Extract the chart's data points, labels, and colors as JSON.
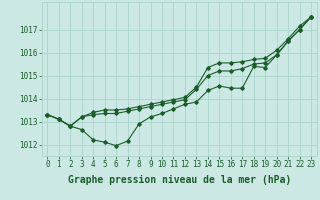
{
  "hours": [
    0,
    1,
    2,
    3,
    4,
    5,
    6,
    7,
    8,
    9,
    10,
    11,
    12,
    13,
    14,
    15,
    16,
    17,
    18,
    19,
    20,
    21,
    22,
    23
  ],
  "line_current": [
    1013.3,
    1013.1,
    1012.8,
    1012.65,
    1012.2,
    1012.1,
    1011.95,
    1012.15,
    1012.9,
    1013.2,
    1013.35,
    1013.55,
    1013.75,
    1013.85,
    1014.35,
    1014.55,
    1014.45,
    1014.45,
    1015.4,
    1015.35,
    1015.9,
    1016.5,
    1017.0,
    1017.55
  ],
  "line_top": [
    1013.3,
    1013.1,
    1012.8,
    1013.2,
    1013.4,
    1013.5,
    1013.5,
    1013.55,
    1013.65,
    1013.75,
    1013.85,
    1013.95,
    1014.05,
    1014.5,
    1015.35,
    1015.55,
    1015.55,
    1015.6,
    1015.7,
    1015.75,
    1016.1,
    1016.6,
    1017.15,
    1017.55
  ],
  "line_mid": [
    1013.3,
    1013.1,
    1012.8,
    1013.2,
    1013.3,
    1013.35,
    1013.35,
    1013.45,
    1013.55,
    1013.65,
    1013.75,
    1013.85,
    1013.95,
    1014.4,
    1015.0,
    1015.2,
    1015.2,
    1015.3,
    1015.5,
    1015.55,
    1015.9,
    1016.5,
    1017.0,
    1017.55
  ],
  "bg_color": "#cce8e4",
  "grid_color": "#aad4cc",
  "line_color": "#1a5c2a",
  "xlabel": "Graphe pression niveau de la mer (hPa)",
  "ylim_min": 1011.5,
  "ylim_max": 1018.2,
  "yticks": [
    1012,
    1013,
    1014,
    1015,
    1016,
    1017
  ],
  "marker": "D",
  "marker_size": 1.8,
  "line_width": 0.8,
  "xlabel_fontsize": 7,
  "tick_fontsize": 5.5
}
